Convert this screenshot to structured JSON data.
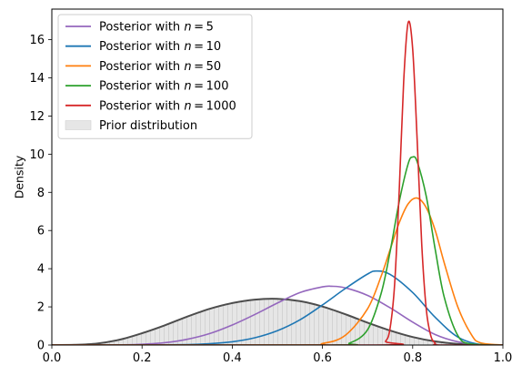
{
  "chart_data": {
    "type": "line",
    "title": "",
    "xlabel": "",
    "ylabel": "Density",
    "xlim": [
      0.0,
      1.0
    ],
    "ylim": [
      0,
      17.6
    ],
    "grid": false,
    "legend_placement": "top-left",
    "xticks": [
      "0.0",
      "0.2",
      "0.4",
      "0.6",
      "0.8",
      "1.0"
    ],
    "yticks": [
      "0",
      "2",
      "4",
      "6",
      "8",
      "10",
      "12",
      "14",
      "16"
    ],
    "prior": {
      "name": "Prior distribution",
      "fill_color": "#e6e6e6",
      "line_color": "#4d4d4d",
      "x": [
        0.0,
        0.05,
        0.1,
        0.15,
        0.2,
        0.25,
        0.3,
        0.35,
        0.4,
        0.45,
        0.5,
        0.55,
        0.6,
        0.65,
        0.7,
        0.75,
        0.8,
        0.85,
        0.9,
        0.95,
        1.0
      ],
      "y": [
        0.0,
        0.01,
        0.08,
        0.28,
        0.62,
        1.03,
        1.49,
        1.9,
        2.2,
        2.38,
        2.42,
        2.3,
        2.02,
        1.62,
        1.17,
        0.76,
        0.42,
        0.19,
        0.06,
        0.01,
        0.0
      ]
    },
    "series": [
      {
        "name": "Posterior with n = 5",
        "color": "#9467bd",
        "x": [
          0.0,
          0.1,
          0.15,
          0.2,
          0.25,
          0.3,
          0.35,
          0.4,
          0.45,
          0.5,
          0.55,
          0.6,
          0.62,
          0.65,
          0.7,
          0.75,
          0.8,
          0.85,
          0.9,
          0.95,
          1.0
        ],
        "y": [
          0.0,
          0.0,
          0.01,
          0.04,
          0.12,
          0.3,
          0.6,
          1.05,
          1.6,
          2.2,
          2.75,
          3.05,
          3.08,
          3.0,
          2.6,
          1.95,
          1.2,
          0.55,
          0.17,
          0.02,
          0.0
        ]
      },
      {
        "name": "Posterior with n = 10",
        "color": "#1f77b4",
        "x": [
          0.0,
          0.2,
          0.3,
          0.35,
          0.4,
          0.45,
          0.5,
          0.55,
          0.6,
          0.65,
          0.7,
          0.72,
          0.75,
          0.8,
          0.85,
          0.9,
          0.95,
          1.0
        ],
        "y": [
          0.0,
          0.0,
          0.02,
          0.07,
          0.17,
          0.38,
          0.75,
          1.32,
          2.1,
          2.95,
          3.72,
          3.88,
          3.7,
          2.75,
          1.45,
          0.42,
          0.03,
          0.0
        ]
      },
      {
        "name": "Posterior with n = 50",
        "color": "#ff7f0e",
        "x": [
          0.0,
          0.55,
          0.6,
          0.65,
          0.7,
          0.73,
          0.75,
          0.77,
          0.79,
          0.81,
          0.83,
          0.85,
          0.87,
          0.9,
          0.93,
          0.95,
          1.0
        ],
        "y": [
          0.0,
          0.0,
          0.08,
          0.5,
          1.9,
          3.6,
          5.0,
          6.4,
          7.4,
          7.7,
          7.2,
          6.0,
          4.3,
          2.0,
          0.55,
          0.12,
          0.0
        ]
      },
      {
        "name": "Posterior with n = 100",
        "color": "#2ca02c",
        "x": [
          0.0,
          0.62,
          0.66,
          0.7,
          0.73,
          0.75,
          0.77,
          0.79,
          0.8,
          0.81,
          0.83,
          0.85,
          0.87,
          0.9,
          0.93,
          1.0
        ],
        "y": [
          0.0,
          0.0,
          0.1,
          0.8,
          2.7,
          4.9,
          7.5,
          9.5,
          9.85,
          9.6,
          7.8,
          5.0,
          2.5,
          0.5,
          0.05,
          0.0
        ]
      },
      {
        "name": "Posterior with n = 1000",
        "color": "#d62728",
        "x": [
          0.0,
          0.72,
          0.74,
          0.75,
          0.76,
          0.77,
          0.78,
          0.79,
          0.8,
          0.81,
          0.82,
          0.83,
          0.84,
          0.85,
          0.86,
          1.0
        ],
        "y": [
          0.0,
          0.0,
          0.2,
          0.9,
          3.2,
          8.0,
          13.8,
          16.9,
          15.5,
          10.7,
          5.3,
          1.9,
          0.5,
          0.1,
          0.0,
          0.0
        ]
      }
    ]
  }
}
